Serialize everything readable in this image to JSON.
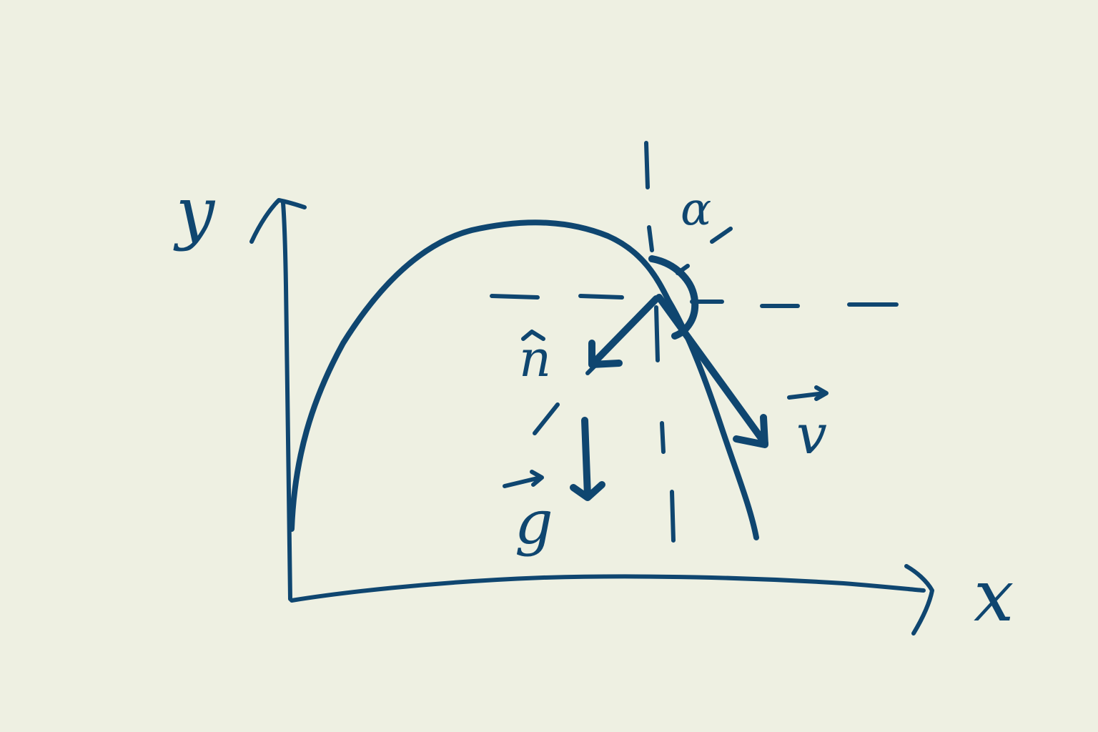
{
  "colors": {
    "paper": "#eef0e2",
    "ink": "#0f4670"
  },
  "axes": {
    "y_label": "y",
    "x_label": "x"
  },
  "vectors": {
    "normal_label": "n",
    "velocity_label": "v",
    "gravity_label": "g"
  },
  "angle": {
    "label": "α"
  }
}
